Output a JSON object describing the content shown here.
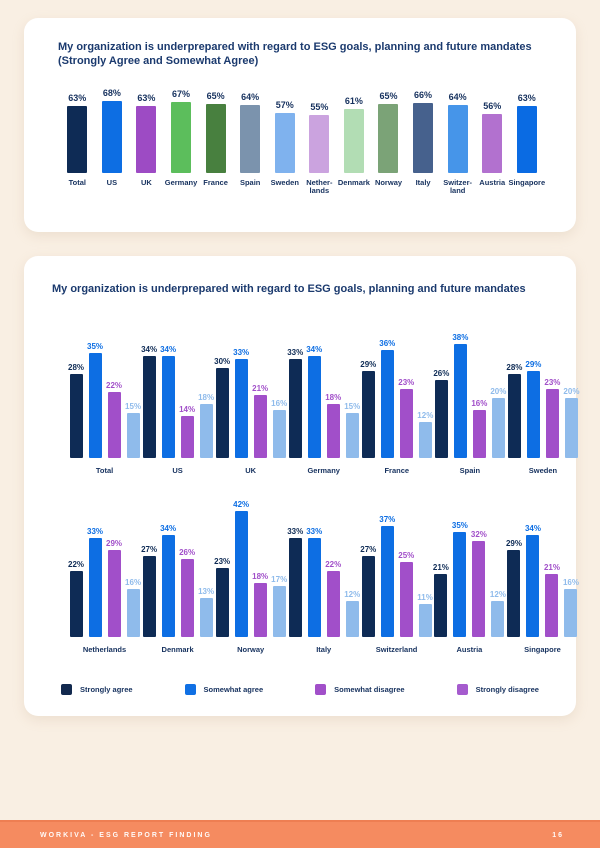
{
  "page": {
    "background": "#F9EFE3",
    "footer": {
      "label": "WORKIVA - ESG REPORT FINDING",
      "page_number": "16",
      "background": "#F58B60"
    }
  },
  "chart_data": [
    {
      "type": "bar",
      "title": "My organization is underprepared with regard to ESG goals, planning and future mandates",
      "subtitle": "(Strongly Agree and Somewhat Agree)",
      "value_suffix": "%",
      "ylim": [
        0,
        70
      ],
      "grid": false,
      "legend_position": "none",
      "value_label_color": "#16315E",
      "bars": [
        {
          "category": "Total",
          "category_lines": [
            "Total"
          ],
          "value": 63,
          "color": "#0E2B55"
        },
        {
          "category": "US",
          "category_lines": [
            "US"
          ],
          "value": 68,
          "color": "#0D6EE3"
        },
        {
          "category": "UK",
          "category_lines": [
            "UK"
          ],
          "value": 63,
          "color": "#9D4BC4"
        },
        {
          "category": "Germany",
          "category_lines": [
            "Germany"
          ],
          "value": 67,
          "color": "#5CBE5C"
        },
        {
          "category": "France",
          "category_lines": [
            "France"
          ],
          "value": 65,
          "color": "#48803F"
        },
        {
          "category": "Spain",
          "category_lines": [
            "Spain"
          ],
          "value": 64,
          "color": "#7B93AD"
        },
        {
          "category": "Sweden",
          "category_lines": [
            "Sweden"
          ],
          "value": 57,
          "color": "#7FB2EE"
        },
        {
          "category": "Netherlands",
          "category_lines": [
            "Nether-",
            "lands"
          ],
          "value": 55,
          "color": "#CBA3DF"
        },
        {
          "category": "Denmark",
          "category_lines": [
            "Denmark"
          ],
          "value": 61,
          "color": "#B2DDB4"
        },
        {
          "category": "Norway",
          "category_lines": [
            "Norway"
          ],
          "value": 65,
          "color": "#7BA377"
        },
        {
          "category": "Italy",
          "category_lines": [
            "Italy"
          ],
          "value": 66,
          "color": "#46618D"
        },
        {
          "category": "Switzerland",
          "category_lines": [
            "Switzer-",
            "land"
          ],
          "value": 64,
          "color": "#4695E9"
        },
        {
          "category": "Austria",
          "category_lines": [
            "Austria"
          ],
          "value": 56,
          "color": "#B271CF"
        },
        {
          "category": "Singapore",
          "category_lines": [
            "Singapore"
          ],
          "value": 63,
          "color": "#0A6BE3"
        }
      ]
    },
    {
      "type": "grouped-bar",
      "title": "My organization is underprepared with regard to ESG goals, planning and future mandates",
      "value_suffix": "%",
      "ylim": [
        0,
        45
      ],
      "grid": false,
      "legend_position": "bottom",
      "series": [
        {
          "name": "Strongly agree",
          "bar_color": "#0E2B55",
          "legend_color": "#12294E"
        },
        {
          "name": "Somewhat agree",
          "bar_color": "#0D6EE3",
          "legend_color": "#1070E4"
        },
        {
          "name": "Somewhat disagree",
          "bar_color": "#A14FC9",
          "legend_color": "#A14FC9"
        },
        {
          "name": "Strongly disagree",
          "bar_color": "#8FBBEB",
          "legend_color": "#A55BCE"
        }
      ],
      "rows": [
        {
          "groups": [
            {
              "category": "Total",
              "values": [
                28,
                35,
                22,
                15
              ]
            },
            {
              "category": "US",
              "values": [
                34,
                34,
                14,
                18
              ]
            },
            {
              "category": "UK",
              "values": [
                30,
                33,
                21,
                16
              ]
            },
            {
              "category": "Germany",
              "values": [
                33,
                34,
                18,
                15
              ]
            },
            {
              "category": "France",
              "values": [
                29,
                36,
                23,
                12
              ]
            },
            {
              "category": "Spain",
              "values": [
                26,
                38,
                16,
                20
              ]
            },
            {
              "category": "Sweden",
              "values": [
                28,
                29,
                23,
                20
              ]
            }
          ]
        },
        {
          "groups": [
            {
              "category": "Netherlands",
              "values": [
                22,
                33,
                29,
                16
              ]
            },
            {
              "category": "Denmark",
              "values": [
                27,
                34,
                26,
                13
              ]
            },
            {
              "category": "Norway",
              "values": [
                23,
                42,
                18,
                17
              ]
            },
            {
              "category": "Italy",
              "values": [
                33,
                33,
                22,
                12
              ]
            },
            {
              "category": "Switzerland",
              "values": [
                27,
                37,
                25,
                11
              ]
            },
            {
              "category": "Austria",
              "values": [
                21,
                35,
                32,
                12
              ]
            },
            {
              "category": "Singapore",
              "values": [
                29,
                34,
                21,
                16
              ]
            }
          ]
        }
      ]
    }
  ]
}
